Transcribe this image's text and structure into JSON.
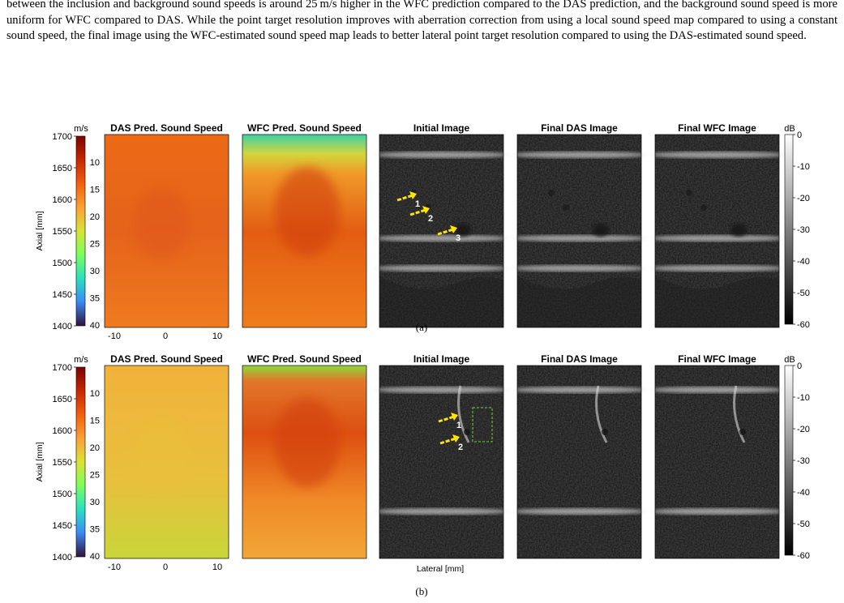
{
  "paragraph": "between the inclusion and background sound speeds is around 25 m/s higher in the WFC prediction compared to the DAS prediction, and the background sound speed is more uniform for WFC compared to DAS. While the point target resolution improves with aberration correction from using a local sound speed map compared to using a constant sound speed, the final image using the WFC-estimated sound speed map leads to better lateral point target resolution compared to using the DAS-estimated sound speed.",
  "figure": {
    "panel_titles": [
      "DAS Pred. Sound Speed",
      "WFC Pred. Sound Speed",
      "Initial Image",
      "Final DAS Image",
      "Final WFC Image"
    ],
    "speed_colorbar": {
      "unit": "m/s",
      "ticks": [
        "1700",
        "1650",
        "1600",
        "1550",
        "1500",
        "1450",
        "1400"
      ],
      "axis_label": "Axial [mm]"
    },
    "axial_ticks": [
      "10",
      "15",
      "20",
      "25",
      "30",
      "35",
      "40"
    ],
    "lateral_ticks": [
      "-10",
      "0",
      "10"
    ],
    "db_colorbar": {
      "unit": "dB",
      "ticks": [
        "0",
        "-10",
        "-20",
        "-30",
        "-40",
        "-50",
        "-60"
      ]
    },
    "x_axis_label": "Lateral [mm]",
    "rows": [
      {
        "caption": "(a)",
        "arrow_labels": [
          "1",
          "2",
          "3"
        ]
      },
      {
        "caption": "(b)",
        "arrow_labels": [
          "1",
          "2"
        ]
      }
    ]
  }
}
